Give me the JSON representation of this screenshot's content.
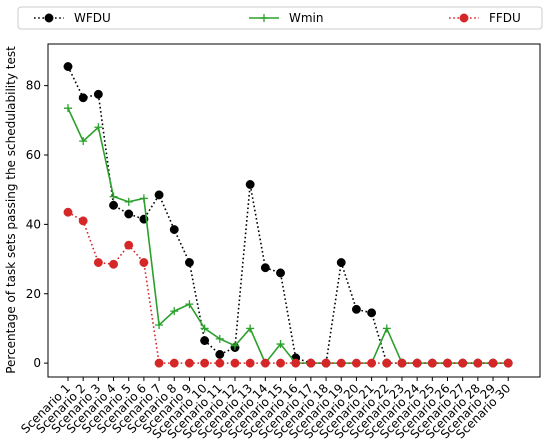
{
  "chart_data": {
    "type": "line",
    "title": "",
    "xlabel": "",
    "ylabel": "Percentage of task sets passing the schedulability test",
    "ylim": [
      -4,
      92
    ],
    "yticks": [
      0,
      20,
      40,
      60,
      80
    ],
    "grid": false,
    "legend_position": "top",
    "categories": [
      "Scenario 1",
      "Scenario 2",
      "Scenario 3",
      "Scenario 4",
      "Scenario 5",
      "Scenario 6",
      "Scenario 7",
      "Scenario 8",
      "Scenario 9",
      "Scenario 10",
      "Scenario 11",
      "Scenario 12",
      "Scenario 13",
      "Scenario 14",
      "Scenario 15",
      "Scenario 16",
      "Scenario 17",
      "Scenario 18",
      "Scenario 19",
      "Scenario 20",
      "Scenario 21",
      "Scenario 22",
      "Scenario 23",
      "Scenario 24",
      "Scenario 25",
      "Scenario 26",
      "Scenario 27",
      "Scenario 28",
      "Scenario 29",
      "Scenario 30"
    ],
    "series": [
      {
        "name": "WFDU",
        "color": "#000000",
        "line_style": "dotted",
        "marker": "circle",
        "values": [
          85.5,
          76.5,
          77.5,
          45.5,
          43,
          41.5,
          48.5,
          38.5,
          29,
          6.5,
          2.5,
          4.5,
          51.5,
          27.5,
          26,
          1.5,
          0,
          0,
          29,
          15.5,
          14.5,
          0,
          0,
          0,
          0,
          0,
          0,
          0,
          0,
          0
        ]
      },
      {
        "name": "Wmin",
        "color": "#2ca02c",
        "line_style": "solid",
        "marker": "plus",
        "values": [
          73.5,
          64,
          68,
          48,
          46.5,
          47.5,
          11,
          15,
          17,
          10,
          7,
          5,
          10,
          0,
          5.5,
          0,
          0,
          0,
          0,
          0,
          0,
          10,
          0,
          0,
          0,
          0,
          0,
          0,
          0,
          0
        ]
      },
      {
        "name": "FFDU",
        "color": "#d62728",
        "line_style": "dotted",
        "marker": "circle",
        "values": [
          43.5,
          41,
          29,
          28.5,
          34,
          29,
          0,
          0,
          0,
          0,
          0,
          0,
          0,
          0,
          0,
          0,
          0,
          0,
          0,
          0,
          0,
          0,
          0,
          0,
          0,
          0,
          0,
          0,
          0,
          0
        ]
      }
    ]
  }
}
